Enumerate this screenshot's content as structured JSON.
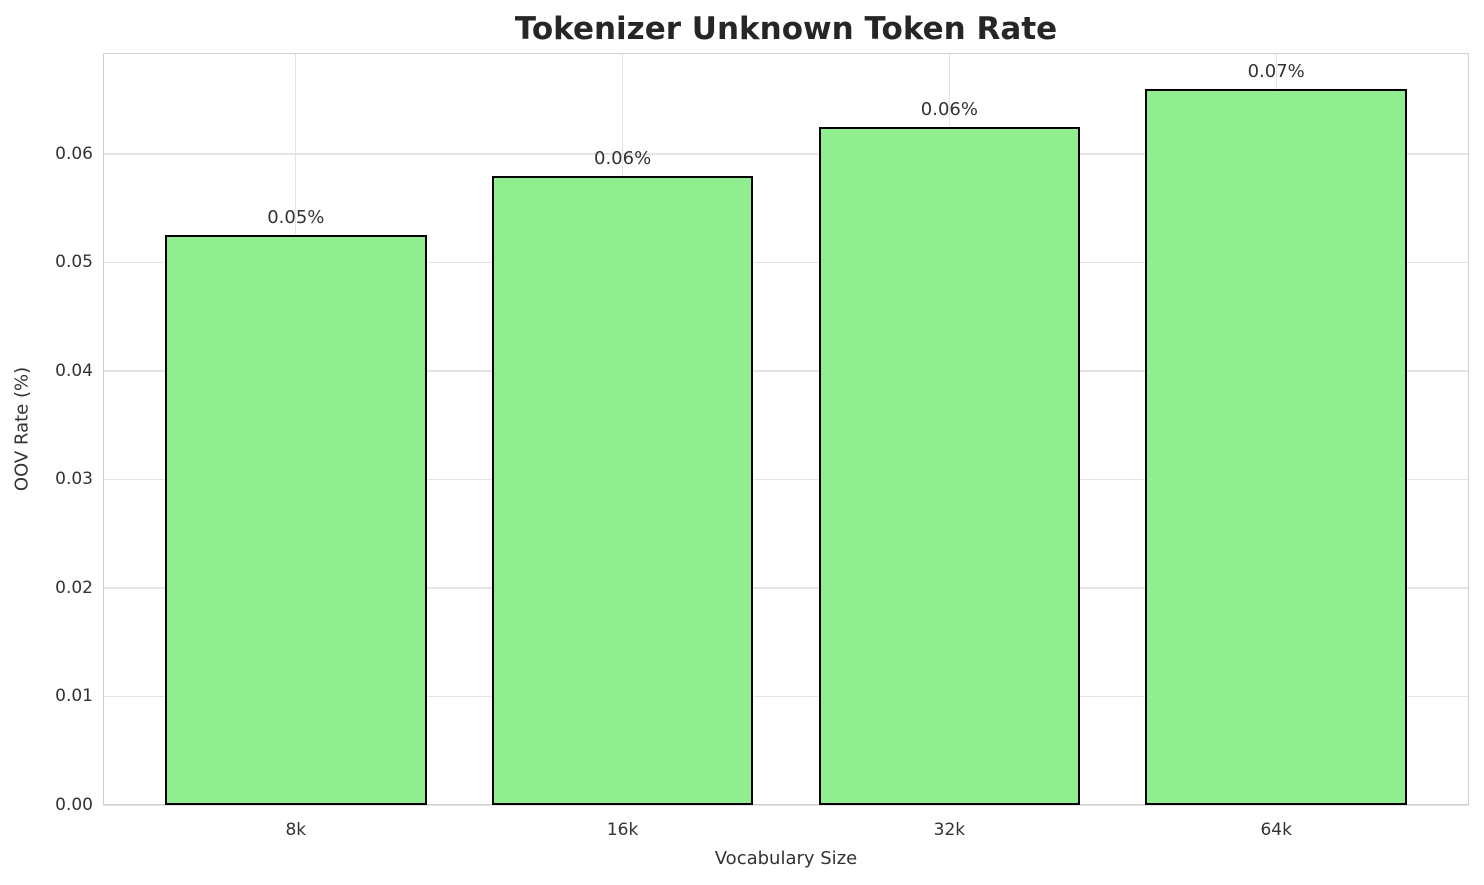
{
  "chart_data": {
    "type": "bar",
    "title": "Tokenizer Unknown Token Rate",
    "xlabel": "Vocabulary Size",
    "ylabel": "OOV Rate (%)",
    "categories": [
      "8k",
      "16k",
      "32k",
      "64k"
    ],
    "values": [
      0.0525,
      0.058,
      0.0625,
      0.066
    ],
    "bar_labels": [
      "0.05%",
      "0.06%",
      "0.06%",
      "0.07%"
    ],
    "yticks": [
      0,
      0.01,
      0.02,
      0.03,
      0.04,
      0.05,
      0.06
    ],
    "ytick_labels": [
      "0.00",
      "0.01",
      "0.02",
      "0.03",
      "0.04",
      "0.05",
      "0.06"
    ],
    "ylim": [
      0,
      0.0693
    ],
    "xlim": [
      -0.59,
      3.59
    ],
    "bar_width": 0.8,
    "grid": true,
    "legend": "none",
    "colors": {
      "bar_fill": "#90ee90",
      "bar_edge": "#000000",
      "grid": "#e4e4e4",
      "spine": "#d0d0d0",
      "title_text": "#262626",
      "text": "#333333",
      "background": "#ffffff"
    }
  }
}
